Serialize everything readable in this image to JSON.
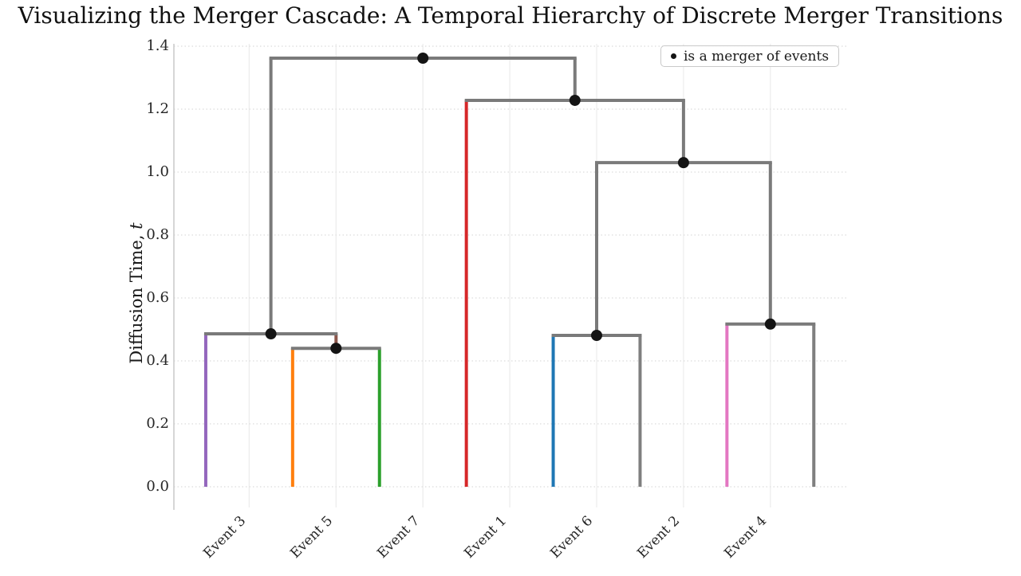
{
  "title": "Visualizing the Merger Cascade: A Temporal Hierarchy of Discrete Merger Transitions",
  "legend": {
    "marker": "merger-dot",
    "label": "is a merger of events"
  },
  "chart_data": {
    "type": "dendrogram",
    "title": "Visualizing the Merger Cascade: A Temporal Hierarchy of Discrete Merger Transitions",
    "ylabel": "Diffusion Time, t",
    "ylabel_prefix": "Diffusion Time, ",
    "ylabel_var": "t",
    "ylim": [
      0,
      1.4
    ],
    "yticks": [
      "0.0",
      "0.2",
      "0.4",
      "0.6",
      "0.8",
      "1.0",
      "1.2",
      "1.4"
    ],
    "grid": {
      "horizontal_style": "dotted",
      "vertical_style": "solid",
      "on": true
    },
    "legend_position": "upper right",
    "leaves": [
      {
        "id": "L0",
        "label": "Event 3",
        "x": 5,
        "color": "#9467bd"
      },
      {
        "id": "L1",
        "label": "Event 5",
        "x": 15,
        "color": "#ff7f0e"
      },
      {
        "id": "L2",
        "label": "Event 7",
        "x": 25,
        "color": "#2ca02c"
      },
      {
        "id": "L3",
        "label": "Event 1",
        "x": 35,
        "color": "#d62728"
      },
      {
        "id": "L4",
        "label": "Event 6",
        "x": 45,
        "color": "#1f77b4"
      },
      {
        "id": "L5",
        "label": "Event 2",
        "x": 55,
        "color": "#7f7f7f"
      },
      {
        "id": "L6",
        "label": "Event 4",
        "x": 65,
        "color": "#e377c2"
      },
      {
        "id": "L7",
        "label": "",
        "x": 75,
        "color": "#7f7f7f"
      }
    ],
    "merges": [
      {
        "id": "M1",
        "children": [
          "L1",
          "L2"
        ],
        "t": 0.44,
        "stem_color": "#8c564b"
      },
      {
        "id": "M2",
        "children": [
          "L0",
          "M1"
        ],
        "t": 0.486
      },
      {
        "id": "M3",
        "children": [
          "L4",
          "L5"
        ],
        "t": 0.481
      },
      {
        "id": "M4",
        "children": [
          "L6",
          "L7"
        ],
        "t": 0.517
      },
      {
        "id": "M5",
        "children": [
          "M3",
          "M4"
        ],
        "t": 1.03
      },
      {
        "id": "M6",
        "children": [
          "L3",
          "M5"
        ],
        "t": 1.228
      },
      {
        "id": "M7",
        "children": [
          "M2",
          "M6"
        ],
        "t": 1.362
      }
    ],
    "colors": {
      "link": "#7a7a7a",
      "dot": "#141414",
      "grid_horizontal": "#e2e2e2",
      "grid_vertical": "#ededed",
      "spine": "#c9c9c9"
    }
  }
}
